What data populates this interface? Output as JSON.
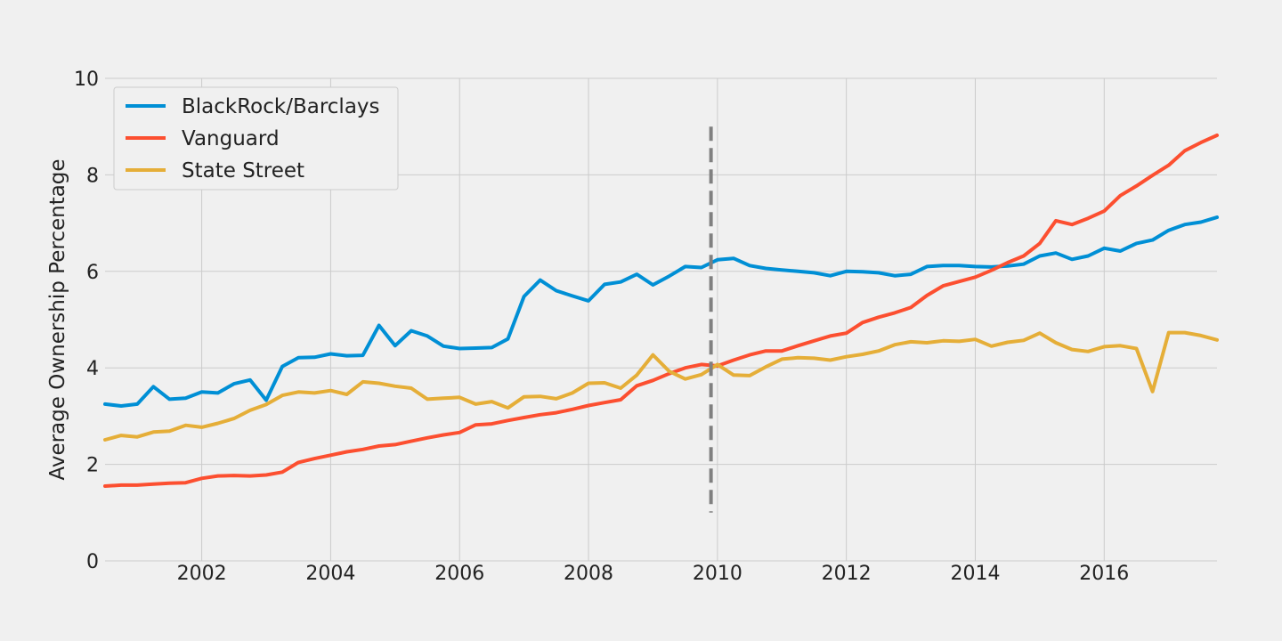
{
  "chart_data": {
    "type": "line",
    "title": "",
    "xlabel": "",
    "ylabel": "Average Ownership Percentage",
    "xlim": [
      2000.5,
      2017.75
    ],
    "ylim": [
      0,
      10
    ],
    "x_ticks": [
      2002,
      2004,
      2006,
      2008,
      2010,
      2012,
      2014,
      2016
    ],
    "y_ticks": [
      0,
      2,
      4,
      6,
      8,
      10
    ],
    "grid": true,
    "legend_position": "top-left",
    "x": [
      2000.5,
      2000.75,
      2001.0,
      2001.25,
      2001.5,
      2001.75,
      2002.0,
      2002.25,
      2002.5,
      2002.75,
      2003.0,
      2003.25,
      2003.5,
      2003.75,
      2004.0,
      2004.25,
      2004.5,
      2004.75,
      2005.0,
      2005.25,
      2005.5,
      2005.75,
      2006.0,
      2006.25,
      2006.5,
      2006.75,
      2007.0,
      2007.25,
      2007.5,
      2007.75,
      2008.0,
      2008.25,
      2008.5,
      2008.75,
      2009.0,
      2009.25,
      2009.5,
      2009.75,
      2010.0,
      2010.25,
      2010.5,
      2010.75,
      2011.0,
      2011.25,
      2011.5,
      2011.75,
      2012.0,
      2012.25,
      2012.5,
      2012.75,
      2013.0,
      2013.25,
      2013.5,
      2013.75,
      2014.0,
      2014.25,
      2014.5,
      2014.75,
      2015.0,
      2015.25,
      2015.5,
      2015.75,
      2016.0,
      2016.25,
      2016.5,
      2016.75,
      2017.0,
      2017.25,
      2017.5,
      2017.75
    ],
    "series": [
      {
        "name": "BlackRock/Barclays",
        "color": "#008fd5",
        "values": [
          3.25,
          3.21,
          3.25,
          3.61,
          3.35,
          3.37,
          3.5,
          3.48,
          3.67,
          3.75,
          3.33,
          4.03,
          4.21,
          4.22,
          4.29,
          4.25,
          4.26,
          4.88,
          4.46,
          4.77,
          4.66,
          4.45,
          4.4,
          4.41,
          4.42,
          4.6,
          5.48,
          5.82,
          5.6,
          5.49,
          5.39,
          5.73,
          5.78,
          5.94,
          5.72,
          5.9,
          6.1,
          6.08,
          6.24,
          6.27,
          6.12,
          6.06,
          6.03,
          6.0,
          5.97,
          5.91,
          6.0,
          5.99,
          5.97,
          5.91,
          5.94,
          6.1,
          6.12,
          6.12,
          6.1,
          6.09,
          6.11,
          6.15,
          6.32,
          6.38,
          6.25,
          6.32,
          6.48,
          6.42,
          6.58,
          6.65,
          6.85,
          6.97,
          7.02,
          7.12
        ]
      },
      {
        "name": "Vanguard",
        "color": "#fc4f30",
        "values": [
          1.55,
          1.57,
          1.57,
          1.59,
          1.61,
          1.62,
          1.71,
          1.76,
          1.77,
          1.76,
          1.78,
          1.84,
          2.04,
          2.12,
          2.19,
          2.26,
          2.31,
          2.38,
          2.41,
          2.48,
          2.55,
          2.61,
          2.66,
          2.82,
          2.84,
          2.91,
          2.97,
          3.03,
          3.07,
          3.14,
          3.22,
          3.28,
          3.34,
          3.63,
          3.74,
          3.88,
          4.0,
          4.07,
          4.04,
          4.16,
          4.27,
          4.35,
          4.35,
          4.46,
          4.56,
          4.66,
          4.72,
          4.94,
          5.05,
          5.14,
          5.25,
          5.5,
          5.7,
          5.79,
          5.88,
          6.02,
          6.18,
          6.32,
          6.58,
          7.05,
          6.97,
          7.1,
          7.25,
          7.57,
          7.77,
          7.99,
          8.2,
          8.5,
          8.67,
          8.82
        ]
      },
      {
        "name": "State Street",
        "color": "#e5ae38",
        "values": [
          2.51,
          2.6,
          2.57,
          2.67,
          2.69,
          2.81,
          2.77,
          2.85,
          2.95,
          3.12,
          3.24,
          3.43,
          3.5,
          3.48,
          3.53,
          3.45,
          3.71,
          3.68,
          3.62,
          3.58,
          3.35,
          3.37,
          3.39,
          3.25,
          3.3,
          3.17,
          3.4,
          3.41,
          3.36,
          3.48,
          3.68,
          3.69,
          3.58,
          3.85,
          4.27,
          3.93,
          3.77,
          3.86,
          4.07,
          3.85,
          3.84,
          4.02,
          4.18,
          4.21,
          4.2,
          4.16,
          4.23,
          4.28,
          4.35,
          4.48,
          4.54,
          4.52,
          4.56,
          4.55,
          4.59,
          4.45,
          4.53,
          4.57,
          4.72,
          4.52,
          4.38,
          4.34,
          4.44,
          4.46,
          4.4,
          3.51,
          4.73,
          4.73,
          4.67,
          4.58
        ]
      }
    ],
    "reference_line": {
      "x": 2009.9,
      "y_from": 1.0,
      "y_to": 9.0,
      "style": "dashed",
      "color": "#808080"
    }
  }
}
